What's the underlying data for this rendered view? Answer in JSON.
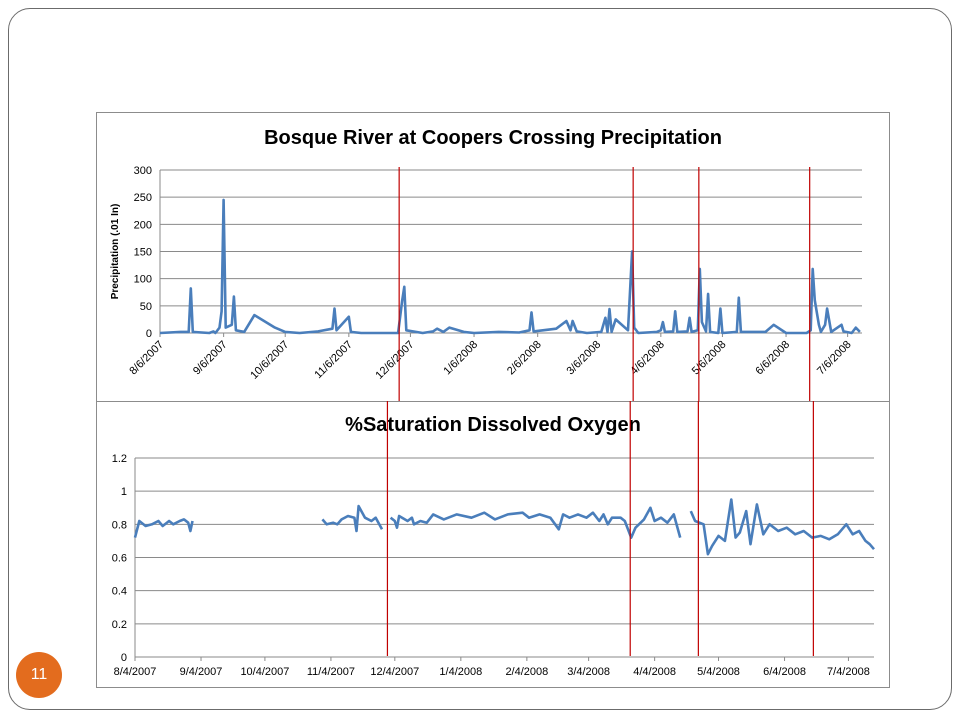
{
  "slide": {
    "page_number": "11",
    "accent_color": "#e36c1e"
  },
  "marker_color": "#c00000",
  "marker_dates": [
    "12/1/2007",
    "3/24/2008",
    "4/25/2008",
    "6/18/2008"
  ],
  "chart_data": [
    {
      "type": "line",
      "title": "Bosque River at Coopers Crossing Precipitation",
      "xlabel": "",
      "ylabel": "Precipitation (.01 In)",
      "ylim": [
        0,
        300
      ],
      "y_ticks": [
        "0",
        "50",
        "100",
        "150",
        "200",
        "250",
        "300"
      ],
      "x_ticks": [
        {
          "date": "8/6/2007",
          "label": "8/6/2007"
        },
        {
          "date": "9/6/2007",
          "label": "9/6/2007"
        },
        {
          "date": "10/6/2007",
          "label": "10/6/2007"
        },
        {
          "date": "11/6/2007",
          "label": "11/6/2007"
        },
        {
          "date": "12/6/2007",
          "label": "12/6/2007"
        },
        {
          "date": "1/6/2008",
          "label": "1/6/2008"
        },
        {
          "date": "2/6/2008",
          "label": "2/6/2008"
        },
        {
          "date": "3/6/2008",
          "label": "3/6/2008"
        },
        {
          "date": "4/6/2008",
          "label": "4/6/2008"
        },
        {
          "date": "5/6/2008",
          "label": "5/6/2008"
        },
        {
          "date": "6/6/2008",
          "label": "6/6/2008"
        },
        {
          "date": "7/6/2008",
          "label": "7/6/2008"
        }
      ],
      "xlim": [
        "8/6/2007",
        "7/13/2008"
      ],
      "grid": true,
      "color": "#4a7ebb",
      "series": [
        {
          "name": "",
          "points": [
            [
              "8/6/2007",
              0
            ],
            [
              "8/16/2007",
              2
            ],
            [
              "8/20/2007",
              2
            ],
            [
              "8/21/2007",
              82
            ],
            [
              "8/22/2007",
              2
            ],
            [
              "8/30/2007",
              0
            ],
            [
              "9/1/2007",
              3
            ],
            [
              "9/2/2007",
              0
            ],
            [
              "9/4/2007",
              10
            ],
            [
              "9/5/2007",
              40
            ],
            [
              "9/6/2007",
              245
            ],
            [
              "9/7/2007",
              10
            ],
            [
              "9/10/2007",
              15
            ],
            [
              "9/11/2007",
              67
            ],
            [
              "9/12/2007",
              5
            ],
            [
              "9/16/2007",
              2
            ],
            [
              "9/21/2007",
              33
            ],
            [
              "10/1/2007",
              10
            ],
            [
              "10/6/2007",
              2
            ],
            [
              "10/13/2007",
              0
            ],
            [
              "10/22/2007",
              3
            ],
            [
              "10/29/2007",
              8
            ],
            [
              "10/30/2007",
              45
            ],
            [
              "10/31/2007",
              5
            ],
            [
              "11/6/2007",
              30
            ],
            [
              "11/7/2007",
              2
            ],
            [
              "11/12/2007",
              0
            ],
            [
              "11/30/2007",
              0
            ],
            [
              "12/2/2007",
              60
            ],
            [
              "12/3/2007",
              85
            ],
            [
              "12/4/2007",
              5
            ],
            [
              "12/12/2007",
              0
            ],
            [
              "12/17/2007",
              3
            ],
            [
              "12/19/2007",
              8
            ],
            [
              "12/22/2007",
              2
            ],
            [
              "12/25/2007",
              10
            ],
            [
              "1/1/2008",
              2
            ],
            [
              "1/6/2008",
              0
            ],
            [
              "1/18/2008",
              2
            ],
            [
              "1/28/2008",
              1
            ],
            [
              "2/2/2008",
              5
            ],
            [
              "2/3/2008",
              38
            ],
            [
              "2/4/2008",
              3
            ],
            [
              "2/15/2008",
              8
            ],
            [
              "2/20/2008",
              22
            ],
            [
              "2/22/2008",
              5
            ],
            [
              "2/23/2008",
              22
            ],
            [
              "2/25/2008",
              3
            ],
            [
              "3/1/2008",
              0
            ],
            [
              "3/8/2008",
              2
            ],
            [
              "3/10/2008",
              28
            ],
            [
              "3/11/2008",
              2
            ],
            [
              "3/12/2008",
              44
            ],
            [
              "3/13/2008",
              2
            ],
            [
              "3/15/2008",
              25
            ],
            [
              "3/21/2008",
              5
            ],
            [
              "3/23/2008",
              150
            ],
            [
              "3/24/2008",
              10
            ],
            [
              "3/26/2008",
              0
            ],
            [
              "4/4/2008",
              2
            ],
            [
              "4/6/2008",
              5
            ],
            [
              "4/7/2008",
              20
            ],
            [
              "4/8/2008",
              2
            ],
            [
              "4/12/2008",
              3
            ],
            [
              "4/13/2008",
              40
            ],
            [
              "4/14/2008",
              2
            ],
            [
              "4/19/2008",
              3
            ],
            [
              "4/20/2008",
              28
            ],
            [
              "4/21/2008",
              2
            ],
            [
              "4/24/2008",
              5
            ],
            [
              "4/25/2008",
              118
            ],
            [
              "4/26/2008",
              20
            ],
            [
              "4/28/2008",
              3
            ],
            [
              "4/29/2008",
              72
            ],
            [
              "4/30/2008",
              2
            ],
            [
              "5/4/2008",
              0
            ],
            [
              "5/5/2008",
              45
            ],
            [
              "5/6/2008",
              0
            ],
            [
              "5/13/2008",
              2
            ],
            [
              "5/14/2008",
              65
            ],
            [
              "5/15/2008",
              2
            ],
            [
              "5/27/2008",
              2
            ],
            [
              "5/31/2008",
              15
            ],
            [
              "6/6/2008",
              0
            ],
            [
              "6/16/2008",
              0
            ],
            [
              "6/18/2008",
              5
            ],
            [
              "6/19/2008",
              118
            ],
            [
              "6/20/2008",
              60
            ],
            [
              "6/22/2008",
              15
            ],
            [
              "6/23/2008",
              2
            ],
            [
              "6/25/2008",
              15
            ],
            [
              "6/26/2008",
              45
            ],
            [
              "6/28/2008",
              2
            ],
            [
              "7/3/2008",
              15
            ],
            [
              "7/4/2008",
              3
            ],
            [
              "7/8/2008",
              0
            ],
            [
              "7/10/2008",
              10
            ],
            [
              "7/12/2008",
              2
            ]
          ]
        }
      ]
    },
    {
      "type": "line",
      "title": "%Saturation Dissolved Oxygen",
      "xlabel": "",
      "ylabel": "",
      "ylim": [
        0,
        1.2
      ],
      "y_ticks": [
        "0",
        "0.2",
        "0.4",
        "0.6",
        "0.8",
        "1",
        "1.2"
      ],
      "x_ticks": [
        {
          "date": "8/4/2007",
          "label": "8/4/2007"
        },
        {
          "date": "9/4/2007",
          "label": "9/4/2007"
        },
        {
          "date": "10/4/2007",
          "label": "10/4/2007"
        },
        {
          "date": "11/4/2007",
          "label": "11/4/2007"
        },
        {
          "date": "12/4/2007",
          "label": "12/4/2007"
        },
        {
          "date": "1/4/2008",
          "label": "1/4/2008"
        },
        {
          "date": "2/4/2008",
          "label": "2/4/2008"
        },
        {
          "date": "3/4/2008",
          "label": "3/4/2008"
        },
        {
          "date": "4/4/2008",
          "label": "4/4/2008"
        },
        {
          "date": "5/4/2008",
          "label": "5/4/2008"
        },
        {
          "date": "6/4/2008",
          "label": "6/4/2008"
        },
        {
          "date": "7/4/2008",
          "label": "7/4/2008"
        }
      ],
      "xlim": [
        "8/4/2007",
        "7/16/2008"
      ],
      "grid": true,
      "color": "#4a7ebb",
      "series": [
        {
          "name": "",
          "segments": [
            [
              [
                "8/4/2007",
                0.72
              ],
              [
                "8/6/2007",
                0.82
              ],
              [
                "8/9/2007",
                0.79
              ],
              [
                "8/12/2007",
                0.8
              ],
              [
                "8/15/2007",
                0.82
              ],
              [
                "8/17/2007",
                0.79
              ],
              [
                "8/20/2007",
                0.82
              ],
              [
                "8/22/2007",
                0.8
              ],
              [
                "8/25/2007",
                0.82
              ],
              [
                "8/27/2007",
                0.83
              ],
              [
                "8/29/2007",
                0.81
              ],
              [
                "8/30/2007",
                0.76
              ],
              [
                "8/31/2007",
                0.82
              ]
            ],
            [
              [
                "10/31/2007",
                0.83
              ],
              [
                "11/2/2007",
                0.8
              ],
              [
                "11/5/2007",
                0.81
              ],
              [
                "11/7/2007",
                0.8
              ],
              [
                "11/9/2007",
                0.83
              ],
              [
                "11/12/2007",
                0.85
              ],
              [
                "11/15/2007",
                0.84
              ],
              [
                "11/16/2007",
                0.76
              ],
              [
                "11/17/2007",
                0.91
              ],
              [
                "11/20/2007",
                0.84
              ],
              [
                "11/23/2007",
                0.82
              ],
              [
                "11/25/2007",
                0.84
              ],
              [
                "11/28/2007",
                0.77
              ]
            ],
            [
              [
                "12/2/2007",
                0.84
              ],
              [
                "12/4/2007",
                0.82
              ],
              [
                "12/5/2007",
                0.78
              ],
              [
                "12/6/2007",
                0.85
              ],
              [
                "12/10/2007",
                0.82
              ],
              [
                "12/12/2007",
                0.84
              ],
              [
                "12/13/2007",
                0.8
              ],
              [
                "12/16/2007",
                0.82
              ],
              [
                "12/19/2007",
                0.81
              ],
              [
                "12/22/2007",
                0.86
              ],
              [
                "12/27/2007",
                0.83
              ],
              [
                "1/2/2008",
                0.86
              ],
              [
                "1/9/2008",
                0.84
              ],
              [
                "1/15/2008",
                0.87
              ],
              [
                "1/20/2008",
                0.83
              ],
              [
                "1/26/2008",
                0.86
              ],
              [
                "2/2/2008",
                0.87
              ],
              [
                "2/5/2008",
                0.84
              ],
              [
                "2/10/2008",
                0.86
              ],
              [
                "2/15/2008",
                0.84
              ],
              [
                "2/19/2008",
                0.77
              ],
              [
                "2/21/2008",
                0.86
              ],
              [
                "2/24/2008",
                0.84
              ],
              [
                "2/28/2008",
                0.86
              ],
              [
                "3/3/2008",
                0.84
              ],
              [
                "3/6/2008",
                0.87
              ],
              [
                "3/9/2008",
                0.82
              ],
              [
                "3/11/2008",
                0.86
              ],
              [
                "3/13/2008",
                0.8
              ],
              [
                "3/15/2008",
                0.84
              ],
              [
                "3/19/2008",
                0.84
              ],
              [
                "3/21/2008",
                0.82
              ],
              [
                "3/24/2008",
                0.72
              ],
              [
                "3/26/2008",
                0.78
              ],
              [
                "3/30/2008",
                0.83
              ],
              [
                "4/2/2008",
                0.9
              ],
              [
                "4/4/2008",
                0.82
              ],
              [
                "4/7/2008",
                0.84
              ],
              [
                "4/10/2008",
                0.81
              ],
              [
                "4/13/2008",
                0.86
              ],
              [
                "4/16/2008",
                0.72
              ]
            ],
            [
              [
                "4/21/2008",
                0.88
              ],
              [
                "4/23/2008",
                0.82
              ],
              [
                "4/27/2008",
                0.8
              ],
              [
                "4/29/2008",
                0.62
              ],
              [
                "5/1/2008",
                0.67
              ],
              [
                "5/4/2008",
                0.73
              ],
              [
                "5/7/2008",
                0.7
              ],
              [
                "5/10/2008",
                0.95
              ],
              [
                "5/12/2008",
                0.72
              ],
              [
                "5/14/2008",
                0.75
              ],
              [
                "5/17/2008",
                0.88
              ],
              [
                "5/19/2008",
                0.68
              ],
              [
                "5/22/2008",
                0.92
              ],
              [
                "5/25/2008",
                0.74
              ],
              [
                "5/28/2008",
                0.8
              ],
              [
                "6/1/2008",
                0.76
              ],
              [
                "6/5/2008",
                0.78
              ],
              [
                "6/9/2008",
                0.74
              ],
              [
                "6/13/2008",
                0.76
              ],
              [
                "6/17/2008",
                0.72
              ],
              [
                "6/21/2008",
                0.73
              ],
              [
                "6/25/2008",
                0.71
              ],
              [
                "6/29/2008",
                0.74
              ],
              [
                "7/3/2008",
                0.8
              ],
              [
                "7/6/2008",
                0.74
              ],
              [
                "7/9/2008",
                0.76
              ],
              [
                "7/12/2008",
                0.7
              ],
              [
                "7/14/2008",
                0.68
              ],
              [
                "7/16/2008",
                0.65
              ]
            ]
          ]
        }
      ]
    }
  ]
}
